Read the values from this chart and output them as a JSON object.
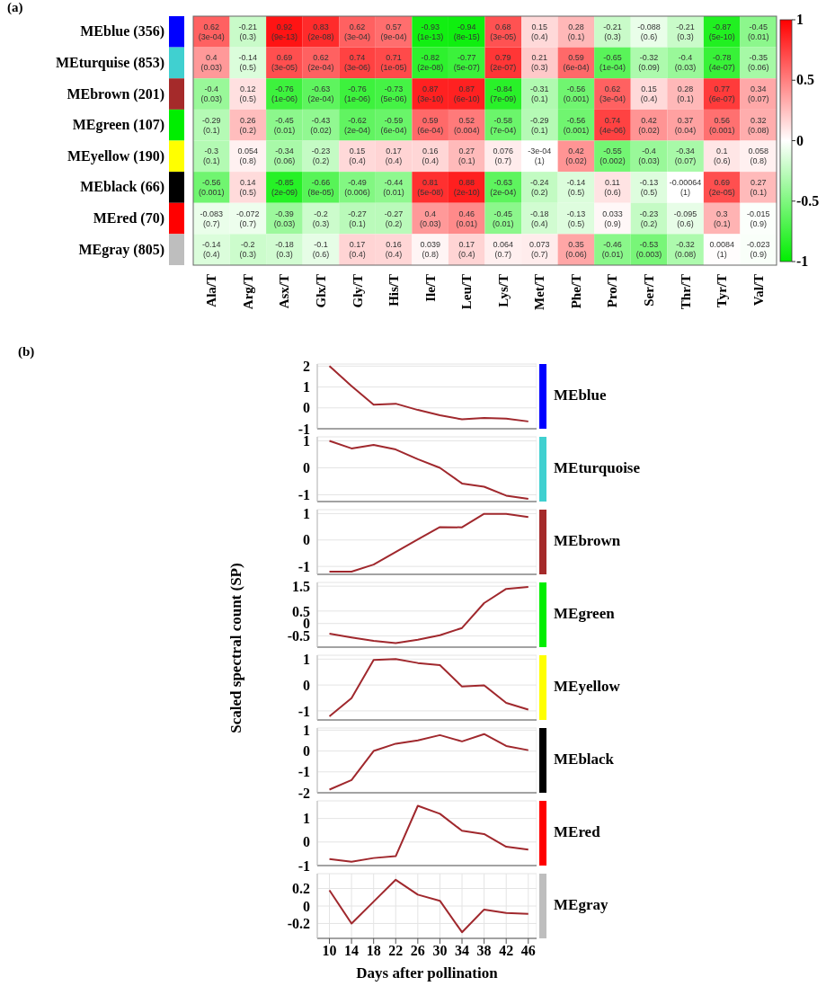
{
  "chart_data": [
    {
      "type": "heatmap",
      "annotations": [
        "(a)"
      ],
      "categories": [
        "Ala/T",
        "Arg/T",
        "Asx/T",
        "Glx/T",
        "Gly/T",
        "His/T",
        "Ile/T",
        "Leu/T",
        "Lys/T",
        "Met/T",
        "Phe/T",
        "Pro/T",
        "Ser/T",
        "Thr/T",
        "Tyr/T",
        "Val/T"
      ],
      "y_categories": [
        "MEblue (356)",
        "MEturquise (853)",
        "MEbrown (201)",
        "MEgreen (107)",
        "MEyellow (190)",
        "MEblack (66)",
        "MEred (70)",
        "MEgray (805)"
      ],
      "cells": [
        [
          0.62,
          -0.21,
          0.92,
          0.83,
          0.62,
          0.57,
          -0.93,
          -0.94,
          0.68,
          0.15,
          0.28,
          -0.21,
          -0.088,
          -0.21,
          -0.87,
          -0.45
        ],
        [
          0.4,
          -0.14,
          0.69,
          0.62,
          0.74,
          0.71,
          -0.82,
          -0.77,
          0.79,
          0.21,
          0.59,
          -0.65,
          -0.32,
          -0.4,
          -0.78,
          -0.35
        ],
        [
          -0.4,
          0.12,
          -0.76,
          -0.63,
          -0.76,
          -0.73,
          0.87,
          0.87,
          -0.84,
          -0.31,
          -0.56,
          0.62,
          0.15,
          0.28,
          0.77,
          0.34
        ],
        [
          -0.29,
          0.26,
          -0.45,
          -0.43,
          -0.62,
          -0.59,
          0.59,
          0.52,
          -0.58,
          -0.29,
          -0.56,
          0.74,
          0.42,
          0.37,
          0.56,
          0.32
        ],
        [
          -0.3,
          0.054,
          -0.34,
          -0.23,
          0.15,
          0.17,
          0.16,
          0.27,
          0.076,
          -0.0003,
          0.42,
          -0.55,
          -0.4,
          -0.34,
          0.1,
          0.058
        ],
        [
          -0.56,
          0.14,
          -0.85,
          -0.66,
          -0.49,
          -0.44,
          0.81,
          0.88,
          -0.63,
          -0.24,
          -0.14,
          0.11,
          -0.13,
          -0.00064,
          0.69,
          0.27
        ],
        [
          -0.083,
          -0.072,
          -0.39,
          -0.2,
          -0.27,
          -0.27,
          0.4,
          0.46,
          -0.45,
          -0.18,
          -0.13,
          0.033,
          -0.23,
          -0.095,
          0.3,
          -0.015
        ],
        [
          -0.14,
          -0.2,
          -0.18,
          -0.1,
          0.17,
          0.16,
          0.039,
          0.17,
          0.064,
          0.073,
          0.35,
          -0.46,
          -0.53,
          -0.32,
          0.0084,
          -0.023
        ]
      ],
      "cell_labels": [
        [
          "0.62\n(3e-04)",
          "-0.21\n(0.3)",
          "0.92\n(9e-13)",
          "0.83\n(2e-08)",
          "0.62\n(3e-04)",
          "0.57\n(9e-04)",
          "-0.93\n(1e-13)",
          "-0.94\n(8e-15)",
          "0.68\n(3e-05)",
          "0.15\n(0.4)",
          "0.28\n(0.1)",
          "-0.21\n(0.3)",
          "-0.088\n(0.6)",
          "-0.21\n(0.3)",
          "-0.87\n(5e-10)",
          "-0.45\n(0.01)"
        ],
        [
          "0.4\n(0.03)",
          "-0.14\n(0.5)",
          "0.69\n(3e-05)",
          "0.62\n(2e-04)",
          "0.74\n(3e-06)",
          "0.71\n(1e-05)",
          "-0.82\n(2e-08)",
          "-0.77\n(5e-07)",
          "0.79\n(2e-07)",
          "0.21\n(0.3)",
          "0.59\n(6e-04)",
          "-0.65\n(1e-04)",
          "-0.32\n(0.09)",
          "-0.4\n(0.03)",
          "-0.78\n(4e-07)",
          "-0.35\n(0.06)"
        ],
        [
          "-0.4\n(0.03)",
          "0.12\n(0.5)",
          "-0.76\n(1e-06)",
          "-0.63\n(2e-04)",
          "-0.76\n(1e-06)",
          "-0.73\n(5e-06)",
          "0.87\n(3e-10)",
          "0.87\n(6e-10)",
          "-0.84\n(7e-09)",
          "-0.31\n(0.1)",
          "-0.56\n(0.001)",
          "0.62\n(3e-04)",
          "0.15\n(0.4)",
          "0.28\n(0.1)",
          "0.77\n(6e-07)",
          "0.34\n(0.07)"
        ],
        [
          "-0.29\n(0.1)",
          "0.26\n(0.2)",
          "-0.45\n(0.01)",
          "-0.43\n(0.02)",
          "-0.62\n(2e-04)",
          "-0.59\n(6e-04)",
          "0.59\n(6e-04)",
          "0.52\n(0.004)",
          "-0.58\n(7e-04)",
          "-0.29\n(0.1)",
          "-0.56\n(0.001)",
          "0.74\n(4e-06)",
          "0.42\n(0.02)",
          "0.37\n(0.04)",
          "0.56\n(0.001)",
          "0.32\n(0.08)"
        ],
        [
          "-0.3\n(0.1)",
          "0.054\n(0.8)",
          "-0.34\n(0.06)",
          "-0.23\n(0.2)",
          "0.15\n(0.4)",
          "0.17\n(0.4)",
          "0.16\n(0.4)",
          "0.27\n(0.1)",
          "0.076\n(0.7)",
          "-3e-04\n(1)",
          "0.42\n(0.02)",
          "-0.55\n(0.002)",
          "-0.4\n(0.03)",
          "-0.34\n(0.07)",
          "0.1\n(0.6)",
          "0.058\n(0.8)"
        ],
        [
          "-0.56\n(0.001)",
          "0.14\n(0.5)",
          "-0.85\n(2e-09)",
          "-0.66\n(8e-05)",
          "-0.49\n(0.006)",
          "-0.44\n(0.01)",
          "0.81\n(5e-08)",
          "0.88\n(2e-10)",
          "-0.63\n(2e-04)",
          "-0.24\n(0.2)",
          "-0.14\n(0.5)",
          "0.11\n(0.6)",
          "-0.13\n(0.5)",
          "-0.00064\n(1)",
          "0.69\n(2e-05)",
          "0.27\n(0.1)"
        ],
        [
          "-0.083\n(0.7)",
          "-0.072\n(0.7)",
          "-0.39\n(0.03)",
          "-0.2\n(0.3)",
          "-0.27\n(0.1)",
          "-0.27\n(0.2)",
          "0.4\n(0.03)",
          "0.46\n(0.01)",
          "-0.45\n(0.01)",
          "-0.18\n(0.4)",
          "-0.13\n(0.5)",
          "0.033\n(0.9)",
          "-0.23\n(0.2)",
          "-0.095\n(0.6)",
          "0.3\n(0.1)",
          "-0.015\n(0.9)"
        ],
        [
          "-0.14\n(0.4)",
          "-0.2\n(0.3)",
          "-0.18\n(0.3)",
          "-0.1\n(0.6)",
          "0.17\n(0.4)",
          "0.16\n(0.4)",
          "0.039\n(0.8)",
          "0.17\n(0.4)",
          "0.064\n(0.7)",
          "0.073\n(0.7)",
          "0.35\n(0.06)",
          "-0.46\n(0.01)",
          "-0.53\n(0.003)",
          "-0.32\n(0.08)",
          "0.0084\n(1)",
          "-0.023\n(0.9)"
        ]
      ],
      "clim": [
        -1,
        1
      ],
      "cticks": [
        -1,
        -0.5,
        0,
        0.5,
        1
      ]
    },
    {
      "type": "line",
      "annotations": [
        "(b)"
      ],
      "x": [
        10,
        14,
        18,
        22,
        26,
        30,
        34,
        38,
        42,
        46
      ],
      "xlim": [
        7.8,
        47.5
      ],
      "xticks": [
        10,
        14,
        18,
        22,
        26,
        30,
        34,
        38,
        42,
        46
      ],
      "ylim": [
        -1,
        2.1
      ],
      "yticks": [
        -1,
        0,
        1,
        2
      ],
      "grid": true,
      "tick_labels": "y",
      "series": [
        {
          "name": "MEblue",
          "color": "#a0282d",
          "values": [
            2.0,
            1.05,
            0.15,
            0.2,
            -0.1,
            -0.35,
            -0.55,
            -0.48,
            -0.52,
            -0.65
          ]
        }
      ]
    },
    {
      "type": "line",
      "x": [
        10,
        14,
        18,
        22,
        26,
        30,
        34,
        38,
        42,
        46
      ],
      "xlim": [
        7.8,
        47.5
      ],
      "xticks": [
        10,
        14,
        18,
        22,
        26,
        30,
        34,
        38,
        42,
        46
      ],
      "ylim": [
        -1.25,
        1.15
      ],
      "yticks": [
        -1,
        0,
        1
      ],
      "grid": true,
      "tick_labels": "y",
      "series": [
        {
          "name": "MEturquoise",
          "color": "#a0282d",
          "values": [
            1.0,
            0.72,
            0.85,
            0.68,
            0.32,
            0.0,
            -0.58,
            -0.7,
            -1.03,
            -1.15
          ]
        }
      ]
    },
    {
      "type": "line",
      "x": [
        10,
        14,
        18,
        22,
        26,
        30,
        34,
        38,
        42,
        46
      ],
      "xlim": [
        7.8,
        47.5
      ],
      "xticks": [
        10,
        14,
        18,
        22,
        26,
        30,
        34,
        38,
        42,
        46
      ],
      "ylim": [
        -1.3,
        1.15
      ],
      "yticks": [
        -1,
        0,
        1
      ],
      "grid": true,
      "tick_labels": "y",
      "series": [
        {
          "name": "MEbrown",
          "color": "#a0282d",
          "values": [
            -1.2,
            -1.2,
            -0.93,
            -0.45,
            0.02,
            0.49,
            0.48,
            0.99,
            0.99,
            0.87
          ]
        }
      ]
    },
    {
      "type": "line",
      "x": [
        10,
        14,
        18,
        22,
        26,
        30,
        34,
        38,
        42,
        46
      ],
      "xlim": [
        7.8,
        47.5
      ],
      "xticks": [
        10,
        14,
        18,
        22,
        26,
        30,
        34,
        38,
        42,
        46
      ],
      "ylim": [
        -0.95,
        1.65
      ],
      "yticks": [
        -0.5,
        0,
        0.5,
        1.5
      ],
      "grid": true,
      "tick_labels": "y",
      "series": [
        {
          "name": "MEgreen",
          "color": "#a0282d",
          "values": [
            -0.41,
            -0.56,
            -0.7,
            -0.79,
            -0.65,
            -0.47,
            -0.18,
            0.82,
            1.39,
            1.47
          ]
        }
      ]
    },
    {
      "type": "line",
      "ylabel": "Scaled spectral count (SP)",
      "x": [
        10,
        14,
        18,
        22,
        26,
        30,
        34,
        38,
        42,
        46
      ],
      "xlim": [
        7.8,
        47.5
      ],
      "xticks": [
        10,
        14,
        18,
        22,
        26,
        30,
        34,
        38,
        42,
        46
      ],
      "ylim": [
        -1.35,
        1.15
      ],
      "yticks": [
        -1,
        0,
        1
      ],
      "grid": true,
      "tick_labels": "y",
      "series": [
        {
          "name": "MEyellow",
          "color": "#a0282d",
          "values": [
            -1.21,
            -0.51,
            0.97,
            1.0,
            0.85,
            0.77,
            -0.06,
            -0.01,
            -0.69,
            -0.95
          ]
        }
      ]
    },
    {
      "type": "line",
      "x": [
        10,
        14,
        18,
        22,
        26,
        30,
        34,
        38,
        42,
        46
      ],
      "xlim": [
        7.8,
        47.5
      ],
      "xticks": [
        10,
        14,
        18,
        22,
        26,
        30,
        34,
        38,
        42,
        46
      ],
      "ylim": [
        -2,
        1.1
      ],
      "yticks": [
        -2,
        -1,
        0,
        1
      ],
      "grid": true,
      "tick_labels": "y",
      "series": [
        {
          "name": "MEblack",
          "color": "#a0282d",
          "values": [
            -1.85,
            -1.39,
            0.0,
            0.35,
            0.51,
            0.76,
            0.46,
            0.81,
            0.24,
            0.04
          ]
        }
      ]
    },
    {
      "type": "line",
      "x": [
        10,
        14,
        18,
        22,
        26,
        30,
        34,
        38,
        42,
        46
      ],
      "xlim": [
        7.8,
        47.5
      ],
      "xticks": [
        10,
        14,
        18,
        22,
        26,
        30,
        34,
        38,
        42,
        46
      ],
      "ylim": [
        -1,
        1.75
      ],
      "yticks": [
        -1,
        0,
        1
      ],
      "grid": true,
      "tick_labels": "y",
      "series": [
        {
          "name": "MEred",
          "color": "#a0282d",
          "values": [
            -0.72,
            -0.84,
            -0.68,
            -0.6,
            1.54,
            1.2,
            0.48,
            0.34,
            -0.2,
            -0.32
          ]
        }
      ]
    },
    {
      "type": "line",
      "xlabel": "Days after pollination",
      "x": [
        10,
        14,
        18,
        22,
        26,
        30,
        34,
        38,
        42,
        46
      ],
      "xlim": [
        7.8,
        47.5
      ],
      "xticks": [
        10,
        14,
        18,
        22,
        26,
        30,
        34,
        38,
        42,
        46
      ],
      "ylim": [
        -0.37,
        0.37
      ],
      "yticks": [
        -0.2,
        0,
        0.2
      ],
      "grid": true,
      "series": [
        {
          "name": "MEgray",
          "color": "#a0282d",
          "values": [
            0.18,
            -0.2,
            0.05,
            0.3,
            0.13,
            0.06,
            -0.3,
            -0.04,
            -0.08,
            -0.09
          ]
        }
      ]
    }
  ]
}
